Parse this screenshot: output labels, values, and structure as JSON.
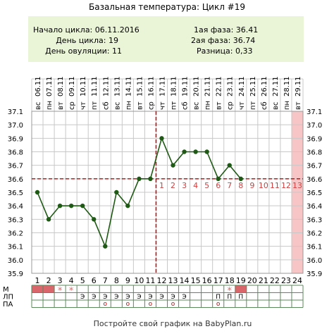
{
  "title": "Базальная температура: Цикл #19",
  "info": {
    "cycle_start": "Начало цикла: 06.11.2016",
    "cycle_day": "День цикла: 19",
    "ovulation_day": "День овуляции: 11",
    "phase1": "1ая фаза: 36.41",
    "phase2": "2ая фаза: 36.74",
    "difference": "Разница: 0,33"
  },
  "footer": "Постройте свой график на BabyPlan.ru",
  "colors": {
    "panel": "#eaf5d8",
    "line": "#1e5a14",
    "coverline": "#cc0000",
    "post_label": "#d04040",
    "highlight": "#f7c5c5",
    "mens": "#d9666b",
    "star": "#e06666"
  },
  "chart_data": {
    "type": "line",
    "title": "Базальная температура: Цикл #19",
    "dates": [
      "06.11",
      "07.11",
      "08.11",
      "09.11",
      "10.11",
      "11.11",
      "12.11",
      "13.11",
      "14.11",
      "15.11",
      "16.11",
      "17.11",
      "18.11",
      "19.11",
      "20.11",
      "21.11",
      "22.11",
      "23.11",
      "24.11",
      "25.11",
      "26.11",
      "27.11",
      "28.11",
      "29.11"
    ],
    "weekdays": [
      "вс",
      "пн",
      "вт",
      "ср",
      "чт",
      "пт",
      "сб",
      "вс",
      "пн",
      "вт",
      "ср",
      "чт",
      "пт",
      "сб",
      "вс",
      "пн",
      "вт",
      "ср",
      "чт",
      "пт",
      "сб",
      "вс",
      "пн",
      "вт"
    ],
    "days": [
      "1",
      "2",
      "3",
      "4",
      "5",
      "6",
      "7",
      "8",
      "9",
      "10",
      "11",
      "12",
      "13",
      "14",
      "15",
      "16",
      "17",
      "18",
      "19",
      "20",
      "21",
      "22",
      "23",
      "24"
    ],
    "y_ticks": [
      "37.1",
      "37.0",
      "36.9",
      "36.8",
      "36.7",
      "36.6",
      "36.5",
      "36.4",
      "36.3",
      "36.2",
      "36.1",
      "36.0",
      "35.9"
    ],
    "ylim": [
      35.9,
      37.1
    ],
    "temperatures": [
      36.5,
      36.3,
      36.4,
      36.4,
      36.4,
      36.3,
      36.1,
      36.5,
      36.4,
      36.6,
      36.6,
      36.9,
      36.7,
      36.8,
      36.8,
      36.8,
      36.6,
      36.7,
      36.6
    ],
    "coverline": 36.6,
    "ovulation_day": 11,
    "highlight_day": 24,
    "post_ovulation_labels": [
      "1",
      "2",
      "3",
      "4",
      "5",
      "6",
      "7",
      "8",
      "9",
      "10",
      "11",
      "12",
      "13"
    ],
    "grid": true
  },
  "rows": [
    {
      "label": "М",
      "cells": [
        "■",
        "■",
        "*",
        "*",
        "",
        "",
        "",
        "",
        "",
        "",
        "",
        "",
        "",
        "",
        "",
        "",
        "",
        "*",
        "■",
        "",
        "",
        "",
        "",
        ""
      ]
    },
    {
      "label": "ЛП",
      "cells": [
        "",
        "",
        "",
        "",
        "Э",
        "Э",
        "Э",
        "Э",
        "Э",
        "Э",
        "Э",
        "Э",
        "Э",
        "Э",
        "",
        "",
        "П",
        "П",
        "П",
        "",
        "",
        "",
        "",
        ""
      ]
    },
    {
      "label": "ПА",
      "cells": [
        "",
        "",
        "",
        "",
        "",
        "",
        "о",
        "",
        "о",
        "",
        "о",
        "",
        "о",
        "",
        "",
        "",
        "о",
        "",
        "",
        "",
        "",
        "",
        "",
        ""
      ]
    }
  ]
}
